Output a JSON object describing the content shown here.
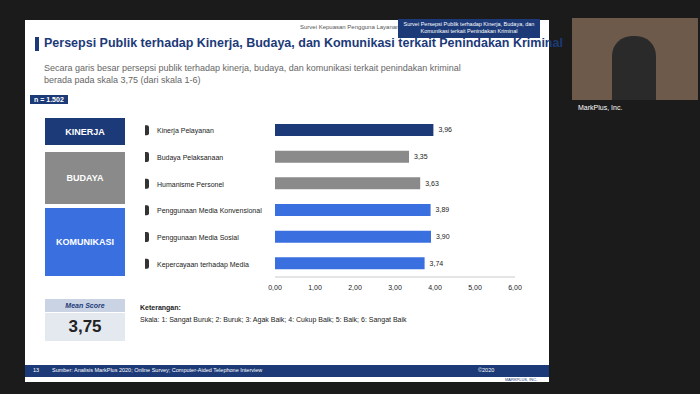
{
  "slide": {
    "header": "Survei Kepuasan Pengguna Layanan Bareskrim",
    "header_tag": "Survei Persepsi Publik terhadap Kinerja, Budaya, dan Komunikasi terkait Penindakan Kriminal",
    "title": "Persepsi Publik terhadap Kinerja, Budaya, dan Komunikasi terkait Penindakan Kriminal",
    "subtitle": "Secara garis besar persepsi publik terhadap kinerja, budaya, dan komunikasi terkait penindakan kriminal berada pada skala 3,75 (dari skala 1-6)",
    "sample": "n = 1.502",
    "groups": [
      {
        "name": "KINERJA",
        "color": "#1c3a78"
      },
      {
        "name": "BUDAYA",
        "color": "#8a8a8a"
      },
      {
        "name": "KOMUNIKASI",
        "color": "#3a6fe0"
      }
    ],
    "mean_score": {
      "label": "Mean Score",
      "value": "3,75"
    },
    "note_title": "Keterangan:",
    "note": "Skala: 1: Sangat Buruk; 2: Buruk; 3: Agak Baik; 4: Cukup Baik; 5: Baik; 6: Sangat Baik",
    "page": "13",
    "source": "Sumber: Analisis MarkPlus 2020; Online Survey; Computer-Aided Telephone Interview",
    "copyright": "©2020",
    "logo": "MARKPLUS, INC.",
    "presenter": "MarkPlus, Inc."
  },
  "chart_data": {
    "type": "bar",
    "orientation": "horizontal",
    "categories": [
      "Kinerja Pelayanan",
      "Budaya Pelaksanaan",
      "Humanisme Personel",
      "Penggunaan Media Konvensional",
      "Penggunaan Media Sosial",
      "Kepercayaan terhadap Media"
    ],
    "values": [
      3.96,
      3.35,
      3.63,
      3.89,
      3.9,
      3.74
    ],
    "value_labels": [
      "3,96",
      "3,35",
      "3,63",
      "3,89",
      "3,90",
      "3,74"
    ],
    "colors": [
      "#1c3a78",
      "#8a8a8a",
      "#8a8a8a",
      "#3a6fe0",
      "#3a6fe0",
      "#3a6fe0"
    ],
    "xlim": [
      0,
      6
    ],
    "xticks": [
      {
        "value": 0,
        "label": "0,00"
      },
      {
        "value": 1,
        "label": "1,00"
      },
      {
        "value": 2,
        "label": "2,00"
      },
      {
        "value": 3,
        "label": "3,00"
      },
      {
        "value": 4,
        "label": "4,00"
      },
      {
        "value": 5,
        "label": "5,00"
      },
      {
        "value": 6,
        "label": "6,00"
      }
    ],
    "grid": false,
    "data_labels": true
  }
}
